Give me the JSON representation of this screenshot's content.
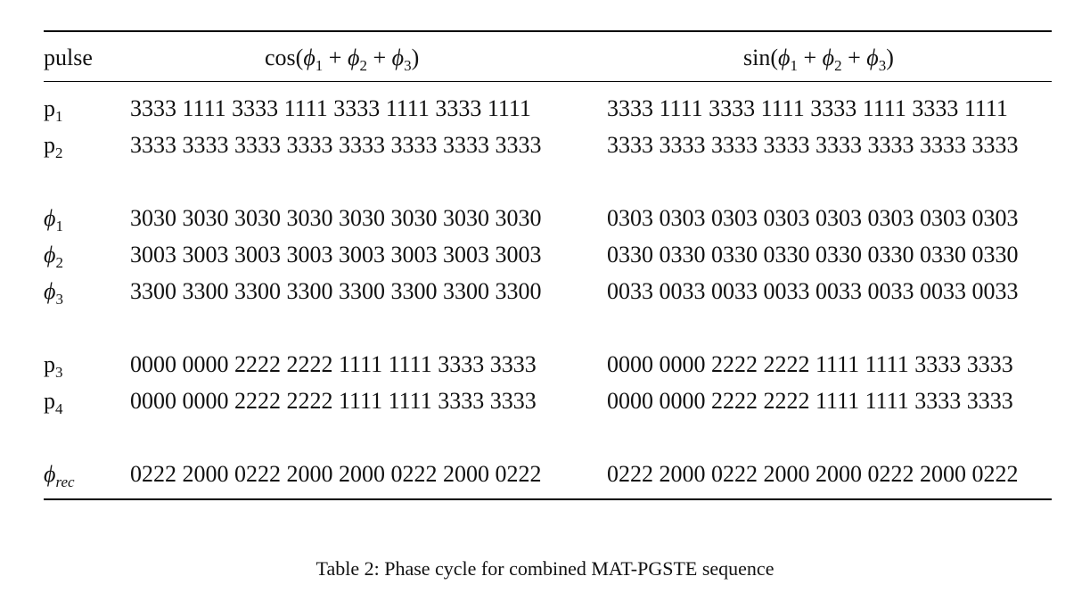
{
  "table": {
    "header": {
      "col0": "pulse",
      "cos_fn": "cos(",
      "sin_fn": "sin(",
      "phi": "ϕ",
      "sub1": "1",
      "sub2": "2",
      "sub3": "3",
      "plus": " + ",
      "close": ")"
    },
    "rows": [
      {
        "label": "p",
        "label_sub": "1",
        "label_italic": false,
        "cos": "3333 1111 3333 1111 3333 1111 3333 1111",
        "sin": "3333 1111 3333 1111 3333 1111 3333 1111"
      },
      {
        "label": "p",
        "label_sub": "2",
        "label_italic": false,
        "cos": "3333 3333 3333 3333 3333 3333 3333 3333",
        "sin": "3333 3333 3333 3333 3333 3333 3333 3333"
      },
      {
        "label": "ϕ",
        "label_sub": "1",
        "label_italic": true,
        "cos": "3030 3030 3030 3030 3030 3030 3030 3030",
        "sin": "0303 0303 0303 0303 0303 0303 0303 0303"
      },
      {
        "label": "ϕ",
        "label_sub": "2",
        "label_italic": true,
        "cos": "3003 3003 3003 3003 3003 3003 3003 3003",
        "sin": "0330 0330 0330 0330 0330 0330 0330 0330"
      },
      {
        "label": "ϕ",
        "label_sub": "3",
        "label_italic": true,
        "cos": "3300 3300 3300 3300 3300 3300 3300 3300",
        "sin": "0033 0033 0033 0033 0033 0033 0033 0033"
      },
      {
        "label": "p",
        "label_sub": "3",
        "label_italic": false,
        "cos": "0000 0000 2222 2222 1111 1111 3333 3333",
        "sin": "0000 0000 2222 2222 1111 1111 3333 3333"
      },
      {
        "label": "p",
        "label_sub": "4",
        "label_italic": false,
        "cos": "0000 0000 2222 2222 1111 1111 3333 3333",
        "sin": "0000 0000 2222 2222 1111 1111 3333 3333"
      },
      {
        "label": "ϕ",
        "label_sub": "rec",
        "label_italic": true,
        "cos": "0222 2000 0222 2000 2000 0222 2000 0222",
        "sin": "0222 2000 0222 2000 2000 0222 2000 0222"
      }
    ]
  },
  "caption": "Table 2: Phase cycle for combined MAT-PGSTE sequence"
}
